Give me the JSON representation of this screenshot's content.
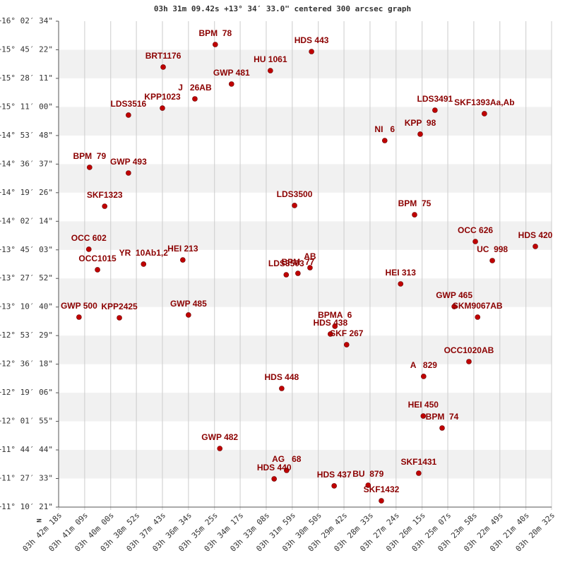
{
  "chart_data": {
    "type": "scatter",
    "title": "03h 31m 09.42s +13° 34′ 33.0\" centered 300 arcsec graph",
    "compass": "N",
    "color": "#c00000",
    "xlim": [
      13338,
      12032
    ],
    "ylim": [
      40221,
      57754
    ],
    "xticks": [
      {
        "value": 13338,
        "label": "03h 42m 18s"
      },
      {
        "value": 13269,
        "label": "03h 41m 09s"
      },
      {
        "value": 13200,
        "label": "03h 40m 00s"
      },
      {
        "value": 13132,
        "label": "03h 38m 52s"
      },
      {
        "value": 13063,
        "label": "03h 37m 43s"
      },
      {
        "value": 12994,
        "label": "03h 36m 34s"
      },
      {
        "value": 12925,
        "label": "03h 35m 25s"
      },
      {
        "value": 12857,
        "label": "03h 34m 17s"
      },
      {
        "value": 12788,
        "label": "03h 33m 08s"
      },
      {
        "value": 12719,
        "label": "03h 31m 59s"
      },
      {
        "value": 12650,
        "label": "03h 30m 50s"
      },
      {
        "value": 12582,
        "label": "03h 29m 42s"
      },
      {
        "value": 12513,
        "label": "03h 28m 33s"
      },
      {
        "value": 12444,
        "label": "03h 27m 24s"
      },
      {
        "value": 12375,
        "label": "03h 26m 15s"
      },
      {
        "value": 12307,
        "label": "03h 25m 07s"
      },
      {
        "value": 12238,
        "label": "03h 23m 58s"
      },
      {
        "value": 12169,
        "label": "03h 22m 49s"
      },
      {
        "value": 12100,
        "label": "03h 21m 40s"
      },
      {
        "value": 12032,
        "label": "03h 20m 32s"
      }
    ],
    "yticks": [
      {
        "value": 57754,
        "label": "+16° 02′ 34\""
      },
      {
        "value": 56722,
        "label": "+15° 45′ 22\""
      },
      {
        "value": 55691,
        "label": "+15° 28′ 11\""
      },
      {
        "value": 54660,
        "label": "+15° 11′ 00\""
      },
      {
        "value": 53628,
        "label": "+14° 53′ 48\""
      },
      {
        "value": 52597,
        "label": "+14° 36′ 37\""
      },
      {
        "value": 51566,
        "label": "+14° 19′ 26\""
      },
      {
        "value": 50534,
        "label": "+14° 02′ 14\""
      },
      {
        "value": 49503,
        "label": "+13° 45′ 03\""
      },
      {
        "value": 48472,
        "label": "+13° 27′ 52\""
      },
      {
        "value": 47440,
        "label": "+13° 10′ 40\""
      },
      {
        "value": 46409,
        "label": "+12° 53′ 29\""
      },
      {
        "value": 45378,
        "label": "+12° 36′ 18\""
      },
      {
        "value": 44346,
        "label": "+12° 19′ 06\""
      },
      {
        "value": 43315,
        "label": "+12° 01′ 55\""
      },
      {
        "value": 42284,
        "label": "+11° 44′ 44\""
      },
      {
        "value": 41253,
        "label": "+11° 27′ 33\""
      },
      {
        "value": 40221,
        "label": "+11° 10′ 21\""
      }
    ],
    "labels": [
      "BPM  78",
      "HDS 443",
      "BRT1176",
      "HU 1061",
      "GWP 481",
      "J   26AB",
      "KPP1023",
      "LDS3516",
      "LDS3491",
      "SKF1393Aa,Ab",
      "KPP  98",
      "NI   6",
      "BPM  79",
      "GWP 493",
      "SKF1323",
      "LDS3500",
      "BPM  75",
      "OCC 626",
      "HDS 420",
      "OCC 602",
      "UC  998",
      "HEI 213",
      "YR  10Ab1,2",
      "OCC1015",
      "LDS3503",
      "BPM  77",
      "AB",
      "HEI 313",
      "GWP 465",
      "SKM9067AB",
      "GWP 500",
      "KPP2425",
      "GWP 485",
      "BPMA  6",
      "HDS 438",
      "SKF 267",
      "OCC1020AB",
      "A   829",
      "HDS 448",
      "HEI 450",
      "BPM  74",
      "GWP 482",
      "AG   68",
      "HDS 440",
      "SKF1431",
      "HDS 437",
      "BU  879",
      "SKF1432"
    ],
    "x": [
      12923,
      12668,
      13061,
      12777,
      12880,
      12977,
      13063,
      13153,
      12341,
      12210,
      12380,
      12474,
      13256,
      13153,
      13216,
      12713,
      12395,
      12234,
      12075,
      13258,
      12189,
      13009,
      13113,
      13235,
      12735,
      12704,
      12672,
      12432,
      12290,
      12228,
      13284,
      13177,
      12994,
      12606,
      12618,
      12575,
      12251,
      12371,
      12747,
      12372,
      12322,
      12911,
      12734,
      12767,
      12384,
      12608,
      12518,
      12483
    ],
    "values": [
      56913,
      56658,
      56098,
      55970,
      55486,
      54951,
      54619,
      54365,
      54543,
      54416,
      53677,
      53447,
      52479,
      52275,
      51077,
      51103,
      50771,
      49803,
      49625,
      49523,
      49115,
      49140,
      48988,
      48784,
      48605,
      48656,
      48860,
      48274,
      47458,
      47076,
      47076,
      47051,
      47153,
      46745,
      46465,
      46082,
      45471,
      44936,
      44502,
      43508,
      43075,
      42336,
      41546,
      41240,
      41444,
      40986,
      41011,
      40450
    ]
  }
}
